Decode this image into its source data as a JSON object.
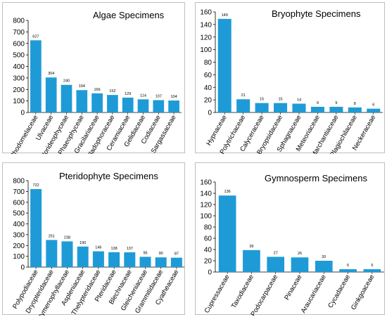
{
  "style": {
    "bar_color": "#1E9BD7",
    "axis_color": "#000000",
    "border_color": "#BFBFBF"
  },
  "chart_data": [
    {
      "type": "bar",
      "title": "Algae Specimens",
      "categories": [
        "Rhodomelaceae",
        "Ulvaceae",
        "Florideophyceae",
        "Phaeophyceae",
        "Gracilariaceae",
        "Cladophoraceae",
        "Ceramiaceae",
        "Gelidiaceae",
        "Codiaceae",
        "Sargassaceae"
      ],
      "values": [
        627,
        304,
        240,
        194,
        166,
        152,
        129,
        114,
        107,
        104
      ],
      "ylim": [
        0,
        800
      ],
      "yticks": [
        0,
        100,
        200,
        300,
        400,
        500,
        600,
        700,
        800
      ],
      "grid": false,
      "legend": "none"
    },
    {
      "type": "bar",
      "title": "Bryophyte Specimens",
      "categories": [
        "Hypnaceae",
        "Polytrichaceae",
        "Calyceraceae",
        "Bryopsidaceae",
        "Sphagnaceae",
        "Meteoriaceae",
        "Marchantiaceae",
        "Plagiochilaceae",
        "Neckeraceae"
      ],
      "values": [
        149,
        21,
        15,
        15,
        14,
        9,
        9,
        8,
        6
      ],
      "ylim": [
        0,
        160
      ],
      "yticks": [
        0,
        20,
        40,
        60,
        80,
        100,
        120,
        140,
        160
      ],
      "grid": false,
      "legend": "none"
    },
    {
      "type": "bar",
      "title": "Pteridophyte Specimens",
      "categories": [
        "Polypodiaceae",
        "Dryopteridaceae",
        "Hymenophyllaceae",
        "Aspleniaceae",
        "Thelypteridaceae",
        "Pteridaceae",
        "Blechnaceae",
        "Gleicheniaceae",
        "Grammitidaceae",
        "Cyatheaceae"
      ],
      "values": [
        722,
        251,
        238,
        190,
        146,
        138,
        137,
        95,
        90,
        87
      ],
      "ylim": [
        0,
        800
      ],
      "yticks": [
        0,
        100,
        200,
        300,
        400,
        500,
        600,
        700,
        800
      ],
      "grid": false,
      "legend": "none"
    },
    {
      "type": "bar",
      "title": "Gymnosperm Specimens",
      "categories": [
        "Cupressaceae",
        "Taxodiaceae",
        "Podocarpaceae",
        "Pinaceae",
        "Araucariaceae",
        "Cycadaceae",
        "Ginkgoaceae"
      ],
      "values": [
        136,
        39,
        27,
        26,
        20,
        5,
        5
      ],
      "ylim": [
        0,
        160
      ],
      "yticks": [
        0,
        20,
        40,
        60,
        80,
        100,
        120,
        140,
        160
      ],
      "grid": false,
      "legend": "none"
    }
  ]
}
